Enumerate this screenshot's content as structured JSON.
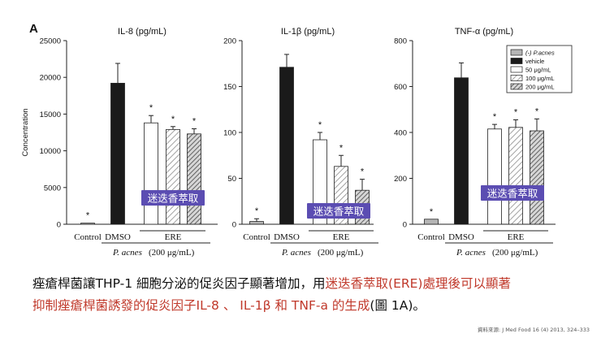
{
  "panel_label": "A",
  "chart_data": [
    {
      "type": "bar",
      "title": "IL-8 (pg/mL)",
      "ylabel": "Concentration",
      "ylim": [
        0,
        25000
      ],
      "yticks": [
        0,
        5000,
        10000,
        15000,
        20000,
        25000
      ],
      "categories": [
        "(-) P.acnes",
        "vehicle",
        "50 μg/mL",
        "100 μg/mL",
        "200 μg/mL"
      ],
      "values": [
        150,
        19200,
        13800,
        12900,
        12300
      ],
      "errors": [
        0,
        2700,
        1000,
        400,
        700
      ],
      "significance": [
        "*",
        "",
        "*",
        "*",
        "*"
      ],
      "overlay_label": "迷迭香萃取"
    },
    {
      "type": "bar",
      "title": "IL-1β (pg/mL)",
      "ylabel": "",
      "ylim": [
        0,
        200
      ],
      "yticks": [
        0,
        50,
        100,
        150,
        200
      ],
      "categories": [
        "(-) P.acnes",
        "vehicle",
        "50 μg/mL",
        "100 μg/mL",
        "200 μg/mL"
      ],
      "values": [
        3,
        171,
        92,
        63,
        37
      ],
      "errors": [
        3,
        14,
        8,
        12,
        12
      ],
      "significance": [
        "*",
        "",
        "*",
        "*",
        "*"
      ],
      "overlay_label": "迷迭香萃取"
    },
    {
      "type": "bar",
      "title": "TNF-α (pg/mL)",
      "ylabel": "",
      "ylim": [
        0,
        800
      ],
      "yticks": [
        0,
        200,
        400,
        600,
        800
      ],
      "categories": [
        "(-) P.acnes",
        "vehicle",
        "50 μg/mL",
        "100 μg/mL",
        "200 μg/mL"
      ],
      "values": [
        22,
        638,
        415,
        422,
        407
      ],
      "errors": [
        0,
        65,
        20,
        33,
        52
      ],
      "significance": [
        "*",
        "",
        "*",
        "*",
        "*"
      ],
      "overlay_label": "迷迭香萃取"
    }
  ],
  "x_groups": {
    "control": "Control",
    "dmso": "DMSO",
    "ere": "ERE",
    "treatment": "P. acnes",
    "dose": "(200 μg/mL)"
  },
  "legend": [
    "(-) P.acnes",
    "vehicle",
    "50 μg/mL",
    "100 μg/mL",
    "200 μg/mL"
  ],
  "series_colors": [
    "#b5b5b5",
    "#1a1a1a",
    "#ffffff",
    "hatch-light",
    "hatch-dark"
  ],
  "caption": {
    "line1_a": "痤瘡桿菌讓THP-1 細胞分泌的促炎因子顯著增加，用",
    "line1_b": "迷迭香萃取(ERE)處理後可以顯著",
    "line2_a": "抑制痤瘡桿菌誘發的促炎因子IL-8 、 IL-1β 和 TNF-a 的生成",
    "line2_b": "(圖 1A)。"
  },
  "source": "資料來源: J Med Food 16 (4) 2013, 324–333",
  "accent_color": "#c0392b",
  "overlay_bg": "#5b4db2"
}
